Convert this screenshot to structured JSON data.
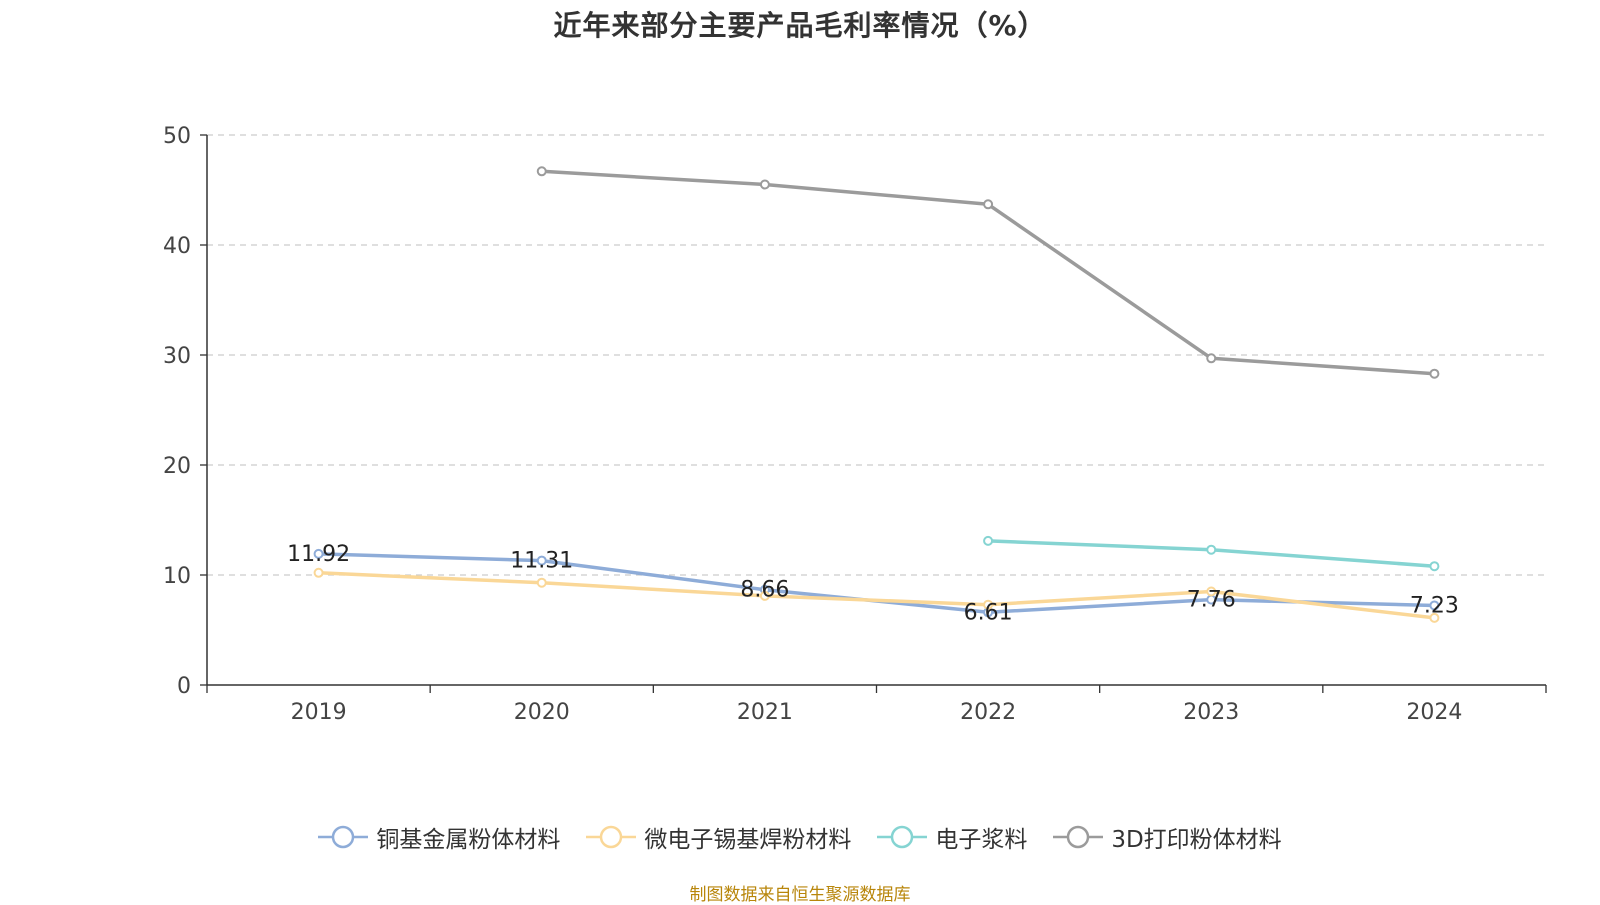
{
  "chart_data": {
    "type": "line",
    "title": "近年来部分主要产品毛利率情况（%）",
    "categories": [
      "2019",
      "2020",
      "2021",
      "2022",
      "2023",
      "2024"
    ],
    "ylim": [
      0,
      50
    ],
    "yticks": [
      0,
      10,
      20,
      30,
      40,
      50
    ],
    "grid": true,
    "legend_position": "bottom",
    "series": [
      {
        "name": "铜基金属粉体材料",
        "color": "#8eacd8",
        "values": [
          11.92,
          11.31,
          8.66,
          6.61,
          7.76,
          7.23
        ],
        "labels": [
          "11.92",
          "11.31",
          "8.66",
          "6.61",
          "7.76",
          "7.23"
        ]
      },
      {
        "name": "微电子锡基焊粉材料",
        "color": "#fad797",
        "values": [
          10.2,
          9.3,
          8.1,
          7.3,
          8.5,
          6.1
        ]
      },
      {
        "name": "电子浆料",
        "color": "#85d4d2",
        "values": [
          null,
          null,
          null,
          13.1,
          12.3,
          10.8
        ]
      },
      {
        "name": "3D打印粉体材料",
        "color": "#9b9b9b",
        "values": [
          null,
          46.7,
          45.5,
          43.7,
          29.7,
          28.3
        ]
      }
    ]
  },
  "footer": {
    "source": "制图数据来自恒生聚源数据库"
  }
}
